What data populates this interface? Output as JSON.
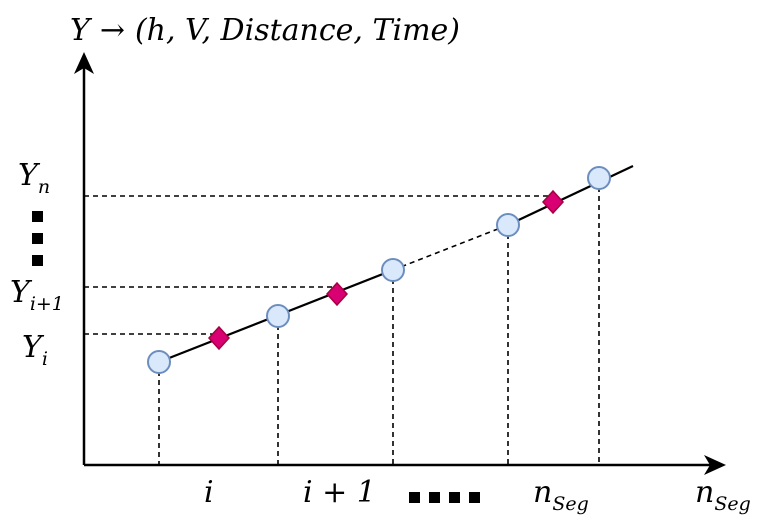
{
  "y_axis_label": {
    "main": "Y",
    "arrow": "→",
    "tuple": "(h, V, Distance, Time)"
  },
  "y_ticks": {
    "yn": {
      "base": "Y",
      "sub": "n"
    },
    "yi1": {
      "base": "Y",
      "sub": "i+1"
    },
    "yi": {
      "base": "Y",
      "sub": "i"
    }
  },
  "x_ticks": {
    "i": "i",
    "i1": "i + 1",
    "nseg": {
      "base": "n",
      "sub": "Seg"
    }
  },
  "x_axis_label": {
    "base": "n",
    "sub": "Seg"
  },
  "colors": {
    "node_fill": "#dae8fc",
    "node_stroke": "#6c8ebf",
    "diamond_fill": "#d80073",
    "diamond_stroke": "#a50040"
  }
}
